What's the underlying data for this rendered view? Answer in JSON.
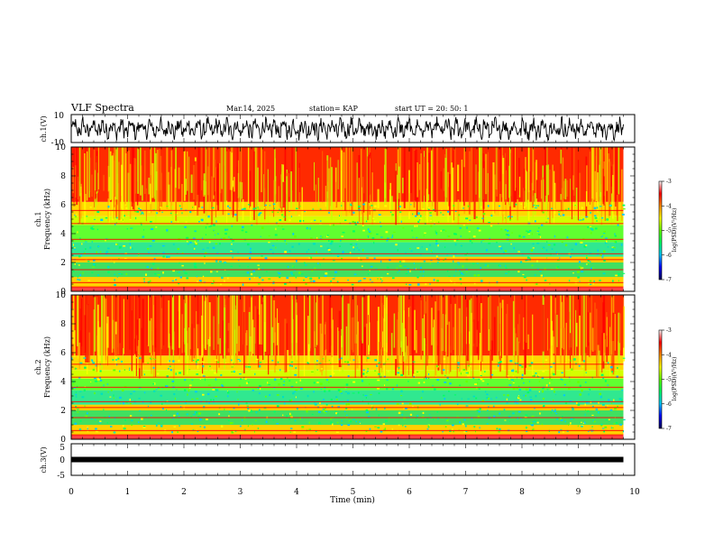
{
  "header": {
    "title": "VLF Spectra",
    "date": "Mar.14, 2025",
    "station": "station= KAP",
    "start_ut": "start  UT  =   20: 50: 1"
  },
  "chart_data": [
    {
      "id": "ch1-wave",
      "type": "line",
      "ylabel": "ch.1(V)",
      "ylim": [
        -10,
        10
      ],
      "yticks": [
        "10",
        "-10"
      ],
      "xlim": [
        0,
        10
      ],
      "color": "#000000"
    },
    {
      "id": "ch1-spectrogram",
      "type": "heatmap",
      "ylabel_line1": "ch.1",
      "ylabel_line2": "Frequency  (kHz)",
      "ylim": [
        0,
        10
      ],
      "yticks": [
        "0",
        "2",
        "4",
        "6",
        "8",
        "10"
      ],
      "xlim": [
        0,
        9.8
      ],
      "colorbar": {
        "label": "log(PSD)(V²/Hz)",
        "range": [
          -7,
          -3
        ],
        "ticks": [
          "-3",
          "-4",
          "-5",
          "-6",
          "-7"
        ],
        "colors": [
          "#000050",
          "#0000ff",
          "#00c8ff",
          "#00ff64",
          "#64ff00",
          "#ffff00",
          "#ff8c00",
          "#ff0000",
          "#ffffff"
        ]
      }
    },
    {
      "id": "ch2-spectrogram",
      "type": "heatmap",
      "ylabel_line1": "ch.2",
      "ylabel_line2": "Frequency  (kHz)",
      "ylim": [
        0,
        10
      ],
      "yticks": [
        "0",
        "2",
        "4",
        "6",
        "8",
        "10"
      ],
      "xlim": [
        0,
        9.8
      ],
      "colorbar": {
        "label": "log(PSD)(V²/Hz)",
        "range": [
          -7,
          -3
        ],
        "ticks": [
          "-3",
          "-4",
          "-5",
          "-6",
          "-7"
        ],
        "colors": [
          "#000050",
          "#0000ff",
          "#00c8ff",
          "#00ff64",
          "#64ff00",
          "#ffff00",
          "#ff8c00",
          "#ff0000",
          "#ffffff"
        ]
      }
    },
    {
      "id": "ch3-signal",
      "type": "line",
      "ylabel": "ch.3(V)",
      "ylim": [
        -5,
        5
      ],
      "yticks": [
        "5",
        "0",
        "-5"
      ],
      "xlabel": "Time  (min)",
      "xlim": [
        0,
        10
      ],
      "xticks": [
        "0",
        "1",
        "2",
        "3",
        "4",
        "5",
        "6",
        "7",
        "8",
        "9",
        "10"
      ],
      "band_level": 0,
      "color": "#000000"
    }
  ]
}
